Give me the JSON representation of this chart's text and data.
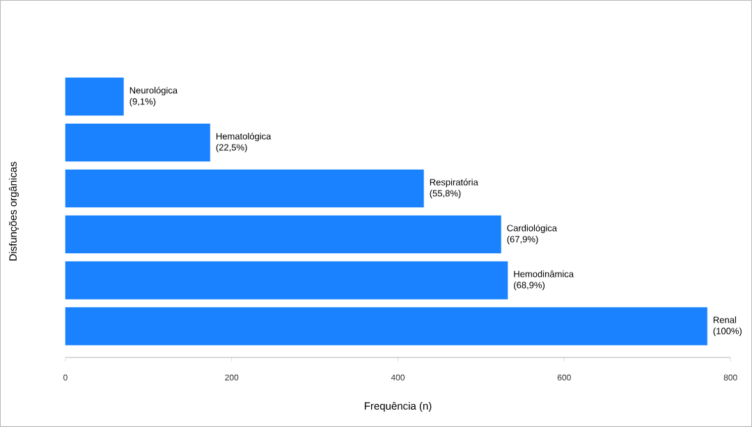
{
  "chart_data": {
    "type": "bar",
    "orientation": "horizontal",
    "xlabel": "Frequência (n)",
    "ylabel": "Disfunções orgânicas",
    "categories": [
      "Neurológica",
      "Hematológica",
      "Respiratória",
      "Cardiológica",
      "Hemodinâmica",
      "Renal"
    ],
    "values": [
      70,
      174,
      431,
      524,
      532,
      772
    ],
    "annotations": [
      {
        "text": "(9,1%)",
        "x": 70,
        "y": "Neurológica"
      },
      {
        "text": "(22,5%)",
        "x": 174,
        "y": "Hematológica"
      },
      {
        "text": "(55,8%)",
        "x": 431,
        "y": "Respiratória"
      },
      {
        "text": "(67,9%)",
        "x": 524,
        "y": "Cardiológica"
      },
      {
        "text": "(68,9%)",
        "x": 532,
        "y": "Hemodinâmica"
      },
      {
        "text": "(100%)",
        "x": 772,
        "y": "Renal"
      }
    ],
    "color": "#1a82ff",
    "xlim": [
      0,
      800
    ],
    "xticks": [
      0,
      200,
      400,
      600,
      800
    ],
    "tick_labels": "x"
  }
}
